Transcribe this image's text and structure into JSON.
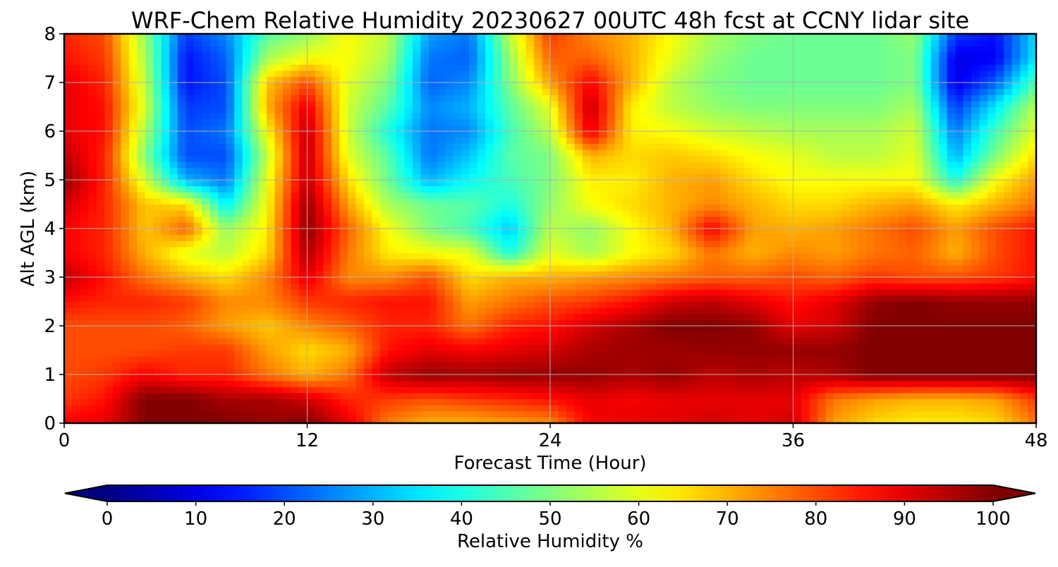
{
  "chart_data": {
    "type": "heatmap",
    "title": "WRF-Chem Relative Humidity 20230627 00UTC 48h fcst at CCNY lidar site",
    "xlabel": "Forecast Time (Hour)",
    "ylabel": "Alt AGL (km)",
    "xlim": [
      0,
      48
    ],
    "ylim": [
      0,
      8
    ],
    "x_ticks": [
      0,
      12,
      24,
      36,
      48
    ],
    "y_ticks": [
      0,
      1,
      2,
      3,
      4,
      5,
      6,
      7,
      8
    ],
    "grid": true,
    "colormap": "jet",
    "colorbar": {
      "label": "Relative Humidity %",
      "ticks": [
        0,
        10,
        20,
        30,
        40,
        50,
        60,
        70,
        80,
        90,
        100
      ],
      "range": [
        0,
        100
      ],
      "extend": "both",
      "orientation": "horizontal",
      "placement": "bottom"
    },
    "x": [
      0,
      2,
      4,
      6,
      8,
      10,
      12,
      14,
      16,
      18,
      20,
      22,
      24,
      26,
      28,
      30,
      32,
      34,
      36,
      38,
      40,
      42,
      44,
      46,
      48
    ],
    "y": [
      0,
      0.5,
      1,
      1.5,
      2,
      2.5,
      3,
      3.5,
      4,
      4.5,
      5,
      5.5,
      6,
      6.5,
      7,
      7.5,
      8
    ],
    "z": [
      [
        88,
        90,
        100,
        100,
        100,
        98,
        100,
        90,
        75,
        70,
        70,
        72,
        74,
        88,
        90,
        90,
        92,
        90,
        92,
        72,
        66,
        64,
        64,
        66,
        76
      ],
      [
        82,
        86,
        100,
        100,
        96,
        96,
        92,
        84,
        82,
        80,
        82,
        84,
        86,
        90,
        88,
        90,
        90,
        90,
        90,
        76,
        72,
        70,
        70,
        72,
        82
      ],
      [
        80,
        82,
        88,
        84,
        84,
        76,
        70,
        76,
        94,
        98,
        97,
        98,
        98,
        98,
        96,
        98,
        94,
        96,
        94,
        96,
        100,
        100,
        100,
        100,
        100
      ],
      [
        80,
        80,
        80,
        82,
        82,
        72,
        66,
        70,
        86,
        90,
        88,
        90,
        92,
        96,
        97,
        97,
        98,
        98,
        98,
        98,
        100,
        100,
        100,
        100,
        100
      ],
      [
        80,
        80,
        80,
        78,
        72,
        68,
        74,
        78,
        84,
        84,
        76,
        84,
        86,
        92,
        96,
        100,
        100,
        98,
        90,
        92,
        100,
        100,
        100,
        100,
        100
      ],
      [
        86,
        84,
        84,
        82,
        74,
        74,
        82,
        84,
        86,
        86,
        72,
        76,
        80,
        82,
        86,
        92,
        94,
        90,
        86,
        90,
        98,
        100,
        98,
        98,
        98
      ],
      [
        94,
        86,
        76,
        70,
        66,
        74,
        90,
        74,
        74,
        80,
        66,
        70,
        70,
        72,
        74,
        76,
        78,
        78,
        80,
        78,
        82,
        80,
        80,
        82,
        86
      ],
      [
        88,
        84,
        70,
        60,
        56,
        66,
        96,
        76,
        64,
        62,
        60,
        40,
        60,
        54,
        62,
        66,
        76,
        70,
        74,
        72,
        76,
        78,
        70,
        80,
        86
      ],
      [
        88,
        84,
        68,
        78,
        52,
        64,
        99,
        78,
        62,
        50,
        44,
        32,
        56,
        52,
        62,
        70,
        88,
        72,
        70,
        72,
        76,
        80,
        72,
        80,
        86
      ],
      [
        92,
        84,
        68,
        66,
        36,
        62,
        98,
        72,
        54,
        48,
        46,
        40,
        52,
        62,
        66,
        70,
        74,
        70,
        66,
        66,
        70,
        72,
        64,
        70,
        76
      ],
      [
        98,
        84,
        58,
        30,
        24,
        60,
        94,
        66,
        48,
        30,
        38,
        44,
        50,
        64,
        64,
        70,
        72,
        66,
        62,
        62,
        62,
        62,
        40,
        62,
        72
      ],
      [
        94,
        84,
        50,
        20,
        20,
        56,
        94,
        60,
        46,
        24,
        32,
        46,
        50,
        70,
        66,
        68,
        66,
        62,
        60,
        56,
        56,
        60,
        30,
        50,
        66
      ],
      [
        90,
        86,
        54,
        20,
        24,
        62,
        94,
        58,
        40,
        24,
        26,
        44,
        56,
        90,
        64,
        62,
        58,
        56,
        54,
        54,
        54,
        58,
        24,
        44,
        60
      ],
      [
        90,
        86,
        58,
        18,
        20,
        70,
        90,
        58,
        46,
        26,
        30,
        46,
        60,
        94,
        64,
        56,
        52,
        50,
        50,
        50,
        50,
        54,
        18,
        36,
        56
      ],
      [
        90,
        84,
        56,
        14,
        20,
        68,
        80,
        60,
        50,
        22,
        26,
        50,
        72,
        88,
        70,
        56,
        50,
        48,
        48,
        48,
        48,
        50,
        10,
        22,
        46
      ],
      [
        86,
        82,
        54,
        14,
        22,
        54,
        62,
        62,
        54,
        24,
        22,
        52,
        78,
        78,
        70,
        60,
        52,
        48,
        48,
        48,
        48,
        50,
        10,
        12,
        36
      ],
      [
        84,
        80,
        52,
        18,
        26,
        46,
        52,
        62,
        56,
        28,
        24,
        56,
        82,
        74,
        70,
        62,
        54,
        50,
        48,
        48,
        48,
        52,
        18,
        14,
        34
      ]
    ]
  }
}
